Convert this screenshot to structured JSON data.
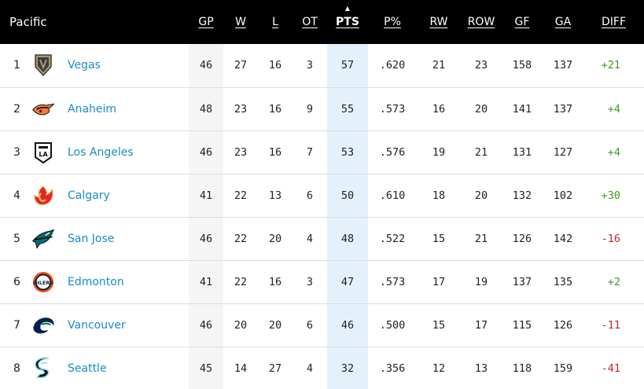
{
  "division": "Pacific",
  "columns": {
    "gp": "GP",
    "w": "W",
    "l": "L",
    "ot": "OT",
    "pts": "PTS",
    "pct": "P%",
    "rw": "RW",
    "row": "ROW",
    "gf": "GF",
    "ga": "GA",
    "diff": "DIFF"
  },
  "sort_indicator": "▲",
  "colors": {
    "link": "#1a8bc8",
    "positive": "#3a9c1f",
    "negative": "#c0282a",
    "sorted_col": "#e5f1fa",
    "header_bg": "#000000"
  },
  "rows": [
    {
      "rank": "1",
      "team": "Vegas",
      "logo": "vegas-logo-icon",
      "gp": "46",
      "w": "27",
      "l": "16",
      "ot": "3",
      "pts": "57",
      "pct": ".620",
      "rw": "21",
      "row": "23",
      "gf": "158",
      "ga": "137",
      "diff": "+21",
      "diff_sign": "pos"
    },
    {
      "rank": "2",
      "team": "Anaheim",
      "logo": "anaheim-logo-icon",
      "gp": "48",
      "w": "23",
      "l": "16",
      "ot": "9",
      "pts": "55",
      "pct": ".573",
      "rw": "16",
      "row": "20",
      "gf": "141",
      "ga": "137",
      "diff": "+4",
      "diff_sign": "pos"
    },
    {
      "rank": "3",
      "team": "Los Angeles",
      "logo": "los-angeles-logo-icon",
      "gp": "46",
      "w": "23",
      "l": "16",
      "ot": "7",
      "pts": "53",
      "pct": ".576",
      "rw": "19",
      "row": "21",
      "gf": "131",
      "ga": "127",
      "diff": "+4",
      "diff_sign": "pos"
    },
    {
      "rank": "4",
      "team": "Calgary",
      "logo": "calgary-logo-icon",
      "gp": "41",
      "w": "22",
      "l": "13",
      "ot": "6",
      "pts": "50",
      "pct": ".610",
      "rw": "18",
      "row": "20",
      "gf": "132",
      "ga": "102",
      "diff": "+30",
      "diff_sign": "pos"
    },
    {
      "rank": "5",
      "team": "San Jose",
      "logo": "san-jose-logo-icon",
      "gp": "46",
      "w": "22",
      "l": "20",
      "ot": "4",
      "pts": "48",
      "pct": ".522",
      "rw": "15",
      "row": "21",
      "gf": "126",
      "ga": "142",
      "diff": "-16",
      "diff_sign": "neg"
    },
    {
      "rank": "6",
      "team": "Edmonton",
      "logo": "edmonton-logo-icon",
      "gp": "41",
      "w": "22",
      "l": "16",
      "ot": "3",
      "pts": "47",
      "pct": ".573",
      "rw": "17",
      "row": "19",
      "gf": "137",
      "ga": "135",
      "diff": "+2",
      "diff_sign": "pos"
    },
    {
      "rank": "7",
      "team": "Vancouver",
      "logo": "vancouver-logo-icon",
      "gp": "46",
      "w": "20",
      "l": "20",
      "ot": "6",
      "pts": "46",
      "pct": ".500",
      "rw": "15",
      "row": "17",
      "gf": "115",
      "ga": "126",
      "diff": "-11",
      "diff_sign": "neg"
    },
    {
      "rank": "8",
      "team": "Seattle",
      "logo": "seattle-logo-icon",
      "gp": "45",
      "w": "14",
      "l": "27",
      "ot": "4",
      "pts": "32",
      "pct": ".356",
      "rw": "12",
      "row": "13",
      "gf": "118",
      "ga": "159",
      "diff": "-41",
      "diff_sign": "neg"
    }
  ]
}
